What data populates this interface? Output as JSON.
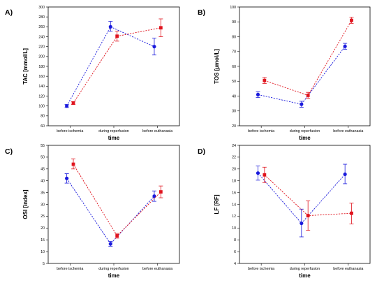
{
  "colors": {
    "series_a": "#1a1adc",
    "series_b": "#e0141e"
  },
  "chart_data": [
    {
      "panel": "A)",
      "type": "line",
      "ylabel": "TAC [mmol/L]",
      "xlabel": "time",
      "categories": [
        "before ischemia",
        "during reperfusion",
        "before euthanasia"
      ],
      "ylim": [
        60,
        300
      ],
      "yticks": [
        60,
        80,
        100,
        120,
        140,
        160,
        180,
        200,
        220,
        240,
        260,
        280,
        300
      ],
      "series": [
        {
          "color": "#1a1adc",
          "marker": "circle",
          "values": [
            100,
            260,
            220
          ],
          "err_low": [
            97,
            251,
            203
          ],
          "err_high": [
            103,
            271,
            237
          ]
        },
        {
          "color": "#e0141e",
          "marker": "square",
          "values": [
            106,
            241,
            258
          ],
          "err_low": [
            103,
            231,
            240
          ],
          "err_high": [
            109,
            251,
            276
          ]
        }
      ]
    },
    {
      "panel": "B)",
      "type": "line",
      "ylabel": "TOS [µmol/L]",
      "xlabel": "time",
      "categories": [
        "before ischemia",
        "during reperfusion",
        "before euthanasia"
      ],
      "ylim": [
        20,
        100
      ],
      "yticks": [
        20,
        30,
        40,
        50,
        60,
        70,
        80,
        90,
        100
      ],
      "series": [
        {
          "color": "#1a1adc",
          "marker": "circle",
          "values": [
            41,
            34.5,
            73.5
          ],
          "err_low": [
            39,
            32.5,
            71.5
          ],
          "err_high": [
            43,
            36.5,
            75.5
          ]
        },
        {
          "color": "#e0141e",
          "marker": "square",
          "values": [
            50.5,
            40.5,
            91
          ],
          "err_low": [
            48.5,
            38.5,
            89
          ],
          "err_high": [
            52.5,
            42.5,
            93
          ]
        }
      ]
    },
    {
      "panel": "C)",
      "type": "line",
      "ylabel": "OSI [index]",
      "xlabel": "time",
      "categories": [
        "before ischemia",
        "during reperfusion",
        "before euthanasia"
      ],
      "ylim": [
        5,
        55
      ],
      "yticks": [
        5,
        10,
        15,
        20,
        25,
        30,
        35,
        40,
        45,
        50,
        55
      ],
      "series": [
        {
          "color": "#1a1adc",
          "marker": "circle",
          "values": [
            41,
            13.3,
            33.5
          ],
          "err_low": [
            39,
            12.3,
            31.3
          ],
          "err_high": [
            43,
            14.3,
            35.7
          ]
        },
        {
          "color": "#e0141e",
          "marker": "square",
          "values": [
            47,
            16.7,
            35.3
          ],
          "err_low": [
            45,
            15.7,
            32.8
          ],
          "err_high": [
            49.3,
            17.7,
            37.8
          ]
        }
      ]
    },
    {
      "panel": "D)",
      "type": "line",
      "ylabel": "LF [RF]",
      "xlabel": "time",
      "categories": [
        "before ischemia",
        "during reperfusion",
        "before euthanasia"
      ],
      "ylim": [
        4,
        24
      ],
      "yticks": [
        4,
        6,
        8,
        10,
        12,
        14,
        16,
        18,
        20,
        22,
        24
      ],
      "series": [
        {
          "color": "#1a1adc",
          "marker": "circle",
          "values": [
            19.3,
            10.8,
            19.1
          ],
          "err_low": [
            18.1,
            8.5,
            17.5
          ],
          "err_high": [
            20.5,
            13.2,
            20.8
          ]
        },
        {
          "color": "#e0141e",
          "marker": "square",
          "values": [
            19,
            12.1,
            12.5
          ],
          "err_low": [
            17.7,
            9.6,
            10.7
          ],
          "err_high": [
            20.3,
            14.6,
            14.2
          ]
        }
      ]
    }
  ]
}
